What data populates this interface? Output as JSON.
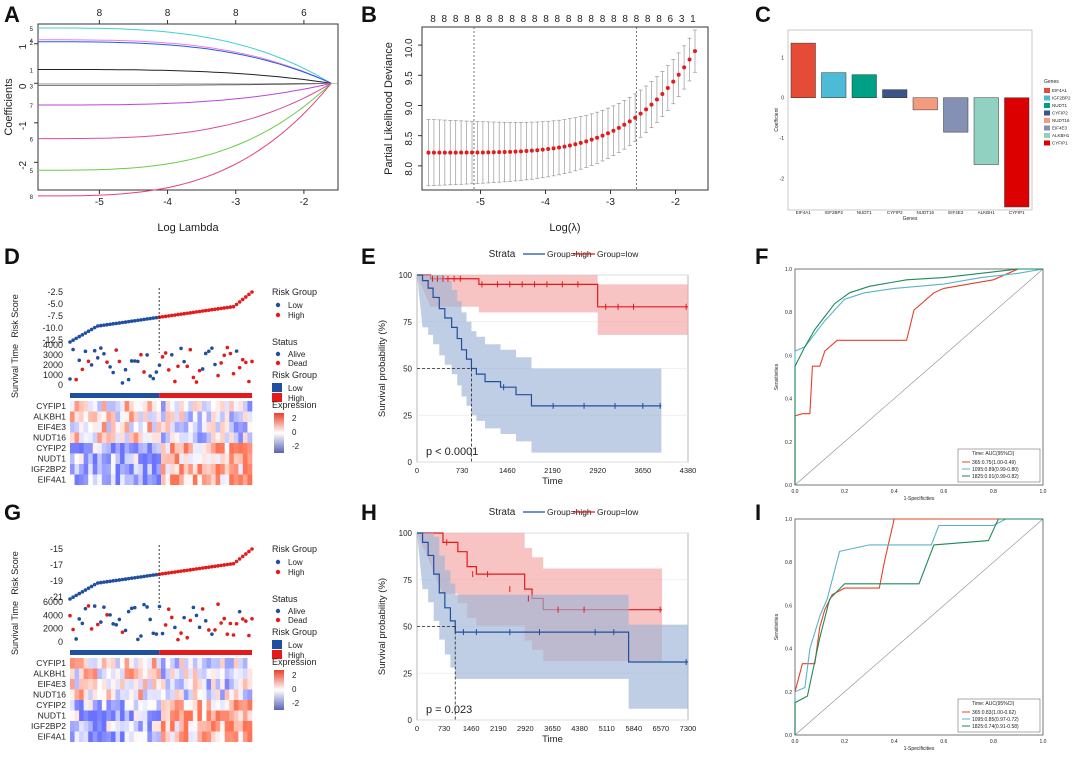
{
  "colors": {
    "low_blue": "#1f4f9f",
    "high_red": "#e41a1c",
    "ribbon_blue": "#9db4d6",
    "ribbon_red": "#f4a3a3"
  },
  "panel_letters": [
    "A",
    "B",
    "C",
    "D",
    "E",
    "F",
    "G",
    "H",
    "I"
  ],
  "chart_data": [
    {
      "panel": "A",
      "type": "line",
      "xlabel": "Log Lambda",
      "ylabel": "Coefficients",
      "xlim": [
        -5.9,
        -1.5
      ],
      "ylim": [
        -2.7,
        1.5
      ],
      "x_ticks": [
        -5,
        -4,
        -3,
        -2
      ],
      "y_ticks": [
        -2,
        -1,
        0,
        1
      ],
      "top_axis_ticks": [
        {
          "x": -5,
          "label": "8"
        },
        {
          "x": -4,
          "label": "8"
        },
        {
          "x": -3,
          "label": "8"
        },
        {
          "x": -2,
          "label": "6"
        }
      ],
      "series": [
        {
          "name": "5",
          "start": 1.4,
          "color": "#41d0d0"
        },
        {
          "name": "4",
          "start": 1.1,
          "color": "#f07ae6"
        },
        {
          "name": "2",
          "start": 1.05,
          "color": "#2060e0"
        },
        {
          "name": "1",
          "start": 0.35,
          "color": "#222222"
        },
        {
          "name": "3",
          "start": -0.05,
          "color": "#555555"
        },
        {
          "name": "7",
          "start": -0.55,
          "color": "#bb44dd"
        },
        {
          "name": "6",
          "start": -1.4,
          "color": "#d64ea0"
        },
        {
          "name": "5",
          "start": -2.2,
          "color": "#6bcc45"
        },
        {
          "name": "8",
          "start": -2.85,
          "color": "#e8407a"
        }
      ]
    },
    {
      "panel": "B",
      "type": "scatter",
      "xlabel": "Log(λ)",
      "ylabel": "Partial Likelihood Deviance",
      "xlim": [
        -5.9,
        -1.5
      ],
      "ylim": [
        7.6,
        10.3
      ],
      "x_ticks": [
        -5,
        -4,
        -3,
        -2
      ],
      "y_ticks": [
        8.0,
        8.5,
        9.0,
        9.5,
        10.0
      ],
      "top_labels": [
        "8",
        "8",
        "8",
        "8",
        "8",
        "8",
        "8",
        "8",
        "8",
        "8",
        "8",
        "8",
        "8",
        "8",
        "8",
        "8",
        "8",
        "8",
        "8",
        "8",
        "8",
        "6",
        "3",
        "1"
      ],
      "vlines": [
        -5.1,
        -2.6
      ],
      "min_deviance": 8.22,
      "max_deviance": 9.9,
      "error_half_width_low": 0.55,
      "error_half_width_high": 0.35
    },
    {
      "panel": "C",
      "type": "bar",
      "categories": [
        "EIF4A1",
        "IGF2BP2",
        "NUDT1",
        "CYFIP2",
        "NUDT16",
        "EIF4E3",
        "ALKBH1",
        "CYFIP1"
      ],
      "values": [
        1.35,
        0.62,
        0.57,
        0.2,
        -0.3,
        -0.85,
        -1.65,
        -2.7
      ],
      "colors": [
        "#e64b35",
        "#4dbbd5",
        "#00a087",
        "#3c5488",
        "#f39b7f",
        "#8491b4",
        "#91d1c2",
        "#dc0000"
      ],
      "ylim": [
        -2.7,
        1.6
      ],
      "y_ticks": [
        -2,
        -1,
        0,
        1
      ],
      "xlabel": "Genes",
      "ylabel": "Coefficient",
      "legend_title": "Genes"
    },
    {
      "panel": "D",
      "type": "heatmap",
      "risk_ylabel": "Risk Score",
      "risk_ticks": [
        "-2.5",
        "-5.0",
        "-7.5",
        "-10.0",
        "-12.5"
      ],
      "surv_ylabel": "Survival Time",
      "surv_ticks": [
        "4000",
        "3000",
        "2000",
        "1000",
        "0"
      ],
      "legend_risk_title": "Risk Group",
      "legend_status_title": "Status",
      "legend_labels": {
        "low": "Low",
        "high": "High",
        "alive": "Alive",
        "dead": "Dead",
        "expression": "Expression"
      },
      "expr_ticks": [
        "2",
        "0",
        "-2"
      ],
      "genes": [
        "CYFIP1",
        "ALKBH1",
        "EIF4E3",
        "NUDT16",
        "CYFIP2",
        "NUDT1",
        "IGF2BP2",
        "EIF4A1"
      ]
    },
    {
      "panel": "E",
      "type": "line",
      "legend_title": "Strata",
      "legend_items": [
        "Group=high",
        "Group=low"
      ],
      "xlabel": "Time",
      "ylabel": "Survival probability (%)",
      "x_ticks": [
        "0",
        "730",
        "1460",
        "2190",
        "2920",
        "3650",
        "4380"
      ],
      "xmax": 4380,
      "y_ticks": [
        "0",
        "25",
        "50",
        "75",
        "100"
      ],
      "pvalue": "p < 0.0001",
      "median_time_high": 880
    },
    {
      "panel": "F",
      "type": "line",
      "xlabel": "1-Specificities",
      "ylabel": "Sensitivities",
      "x_ticks": [
        "0.0",
        "0.2",
        "0.4",
        "0.6",
        "0.8",
        "1.0"
      ],
      "y_ticks": [
        "0.0",
        "0.2",
        "0.4",
        "0.6",
        "0.8",
        "1.0"
      ],
      "legend_title": "Time: AUC(95%CI)",
      "legend_items": [
        "365:0.75(1.00-0.49)",
        "1095:0.89(0.99-0.80)",
        "1825:0.91(0.99-0.82)"
      ],
      "legend_colors": [
        "#e8402a",
        "#5ab4c8",
        "#1f8a5a"
      ]
    },
    {
      "panel": "G",
      "type": "heatmap",
      "risk_ylabel": "Risk Score",
      "risk_ticks": [
        "-15",
        "-17",
        "-19",
        "-21"
      ],
      "surv_ylabel": "Survival Time",
      "surv_ticks": [
        "6000",
        "4000",
        "2000",
        "0"
      ],
      "legend_risk_title": "Risk Group",
      "legend_status_title": "Status",
      "legend_labels": {
        "low": "Low",
        "high": "High",
        "alive": "Alive",
        "dead": "Dead",
        "expression": "Expression"
      },
      "expr_ticks": [
        "2",
        "0",
        "-2"
      ],
      "genes": [
        "CYFIP1",
        "ALKBH1",
        "EIF4E3",
        "NUDT16",
        "CYFIP2",
        "NUDT1",
        "IGF2BP2",
        "EIF4A1"
      ]
    },
    {
      "panel": "H",
      "type": "line",
      "legend_title": "Strata",
      "legend_items": [
        "Group=high",
        "Group=low"
      ],
      "xlabel": "Time",
      "ylabel": "Survival probability (%)",
      "x_ticks": [
        "0",
        "730",
        "1460",
        "2190",
        "2920",
        "3650",
        "4380",
        "5110",
        "5840",
        "6570",
        "7300"
      ],
      "xmax": 7300,
      "y_ticks": [
        "0",
        "25",
        "50",
        "75",
        "100"
      ],
      "pvalue": "p = 0.023",
      "median_time_high": 1030
    },
    {
      "panel": "I",
      "type": "line",
      "xlabel": "1-Specificities",
      "ylabel": "Sensitivities",
      "x_ticks": [
        "0.0",
        "0.2",
        "0.4",
        "0.6",
        "0.8",
        "1.0"
      ],
      "y_ticks": [
        "0.0",
        "0.2",
        "0.4",
        "0.6",
        "0.8",
        "1.0"
      ],
      "legend_title": "Time: AUC(95%CI)",
      "legend_items": [
        "365:0.83(1.00-0.62)",
        "1095:0.85(0.97-0.72)",
        "1825:0.74(0.91-0.58)"
      ],
      "legend_colors": [
        "#e8402a",
        "#5ab4c8",
        "#1f8a5a"
      ]
    }
  ]
}
